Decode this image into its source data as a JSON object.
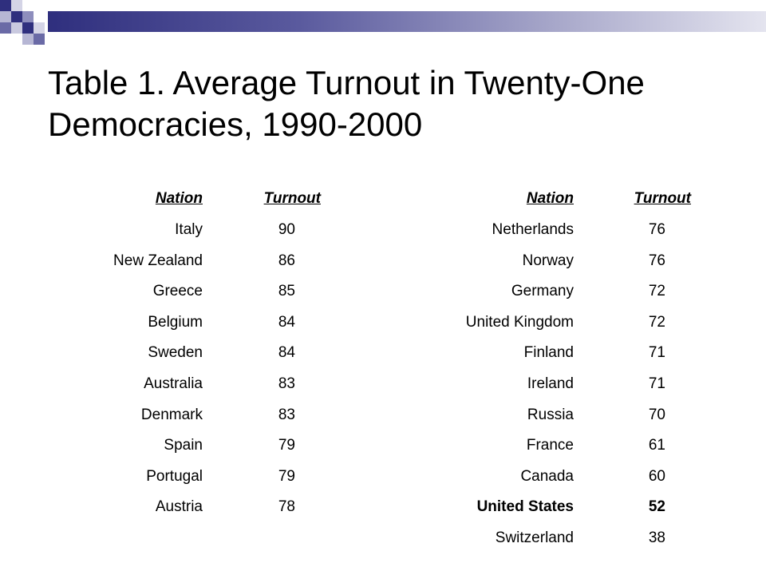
{
  "slide": {
    "title": "Table 1. Average Turnout in Twenty-One Democracies, 1990-2000",
    "accent_color": "#2f2f7e"
  },
  "table": {
    "headers": {
      "nation": "Nation",
      "turnout": "Turnout"
    },
    "left_rows": [
      {
        "nation": "Italy",
        "turnout": "90"
      },
      {
        "nation": "New Zealand",
        "turnout": "86"
      },
      {
        "nation": "Greece",
        "turnout": "85"
      },
      {
        "nation": "Belgium",
        "turnout": "84"
      },
      {
        "nation": "Sweden",
        "turnout": "84"
      },
      {
        "nation": "Australia",
        "turnout": "83"
      },
      {
        "nation": "Denmark",
        "turnout": "83"
      },
      {
        "nation": "Spain",
        "turnout": "79"
      },
      {
        "nation": "Portugal",
        "turnout": "79"
      },
      {
        "nation": "Austria",
        "turnout": "78"
      }
    ],
    "right_rows": [
      {
        "nation": "Netherlands",
        "turnout": "76"
      },
      {
        "nation": "Norway",
        "turnout": "76"
      },
      {
        "nation": "Germany",
        "turnout": "72"
      },
      {
        "nation": "United Kingdom",
        "turnout": "72"
      },
      {
        "nation": "Finland",
        "turnout": "71"
      },
      {
        "nation": "Ireland",
        "turnout": "71"
      },
      {
        "nation": "Russia",
        "turnout": "70"
      },
      {
        "nation": "France",
        "turnout": "61"
      },
      {
        "nation": "Canada",
        "turnout": "60"
      },
      {
        "nation": "United States",
        "turnout": "52",
        "bold": true
      },
      {
        "nation": "Switzerland",
        "turnout": "38"
      }
    ]
  }
}
